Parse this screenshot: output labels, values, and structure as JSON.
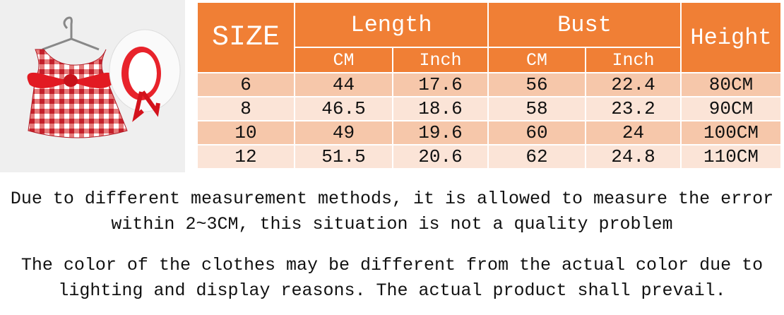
{
  "table": {
    "header": {
      "size": "SIZE",
      "length": "Length",
      "bust": "Bust",
      "height": "Height"
    },
    "subheaders": [
      "CM",
      "Inch",
      "CM",
      "Inch"
    ],
    "rows": [
      [
        "6",
        "44",
        "17.6",
        "56",
        "22.4",
        "80CM"
      ],
      [
        "8",
        "46.5",
        "18.6",
        "58",
        "23.2",
        "90CM"
      ],
      [
        "10",
        "49",
        "19.6",
        "60",
        "24",
        "100CM"
      ],
      [
        "12",
        "51.5",
        "20.6",
        "62",
        "24.8",
        "110CM"
      ]
    ]
  },
  "notes": [
    [
      "Due to different measurement methods, it is allowed to measure the error",
      "within 2~3CM, this situation is not a quality problem"
    ],
    [
      "The color of the clothes may be different from the actual color due to",
      "lighting and display reasons. The actual product shall prevail."
    ]
  ]
}
